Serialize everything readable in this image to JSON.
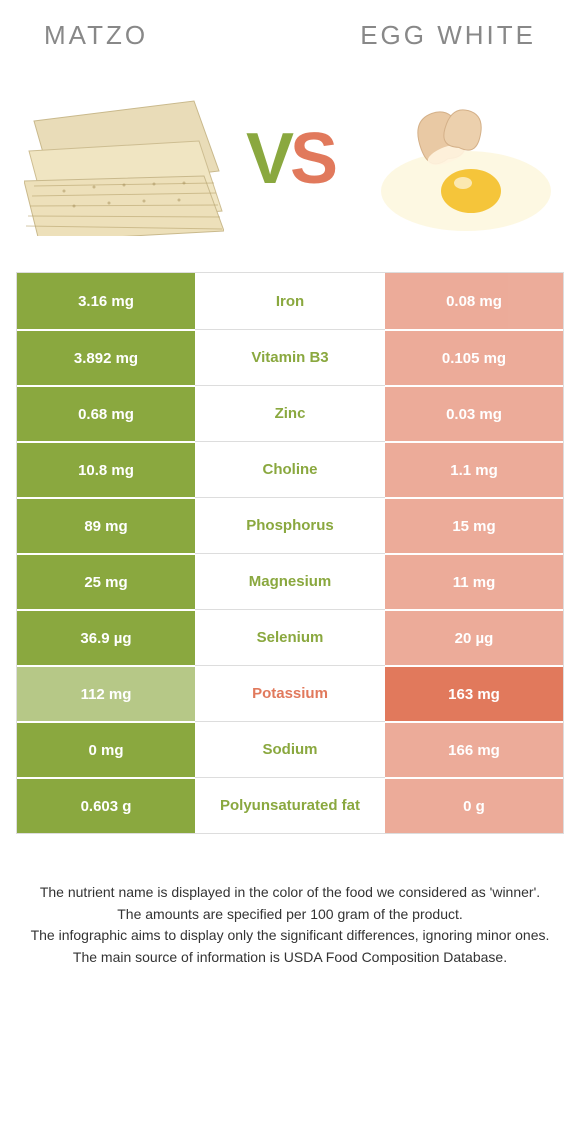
{
  "header": {
    "left_title": "Matzo",
    "right_title": "Egg white"
  },
  "colors": {
    "left": "#8aa83f",
    "right": "#e1795c",
    "row_border": "#dddddd",
    "text_footer": "#333333",
    "title_gray": "#888888"
  },
  "vs_label": {
    "v": "V",
    "s": "S"
  },
  "nutrients": [
    {
      "name": "Iron",
      "left": "3.16 mg",
      "right": "0.08 mg",
      "winner": "left"
    },
    {
      "name": "Vitamin B3",
      "left": "3.892 mg",
      "right": "0.105 mg",
      "winner": "left"
    },
    {
      "name": "Zinc",
      "left": "0.68 mg",
      "right": "0.03 mg",
      "winner": "left"
    },
    {
      "name": "Choline",
      "left": "10.8 mg",
      "right": "1.1 mg",
      "winner": "left"
    },
    {
      "name": "Phosphorus",
      "left": "89 mg",
      "right": "15 mg",
      "winner": "left"
    },
    {
      "name": "Magnesium",
      "left": "25 mg",
      "right": "11 mg",
      "winner": "left"
    },
    {
      "name": "Selenium",
      "left": "36.9 µg",
      "right": "20 µg",
      "winner": "left"
    },
    {
      "name": "Potassium",
      "left": "112 mg",
      "right": "163 mg",
      "winner": "right"
    },
    {
      "name": "Sodium",
      "left": "0 mg",
      "right": "166 mg",
      "winner": "left"
    },
    {
      "name": "Polyunsaturated fat",
      "left": "0.603 g",
      "right": "0 g",
      "winner": "left"
    }
  ],
  "footer_lines": [
    "The nutrient name is displayed in the color of the food we considered as 'winner'.",
    "The amounts are specified per 100 gram of the product.",
    "The infographic aims to display only the significant differences, ignoring minor ones.",
    "The main source of information is USDA Food Composition Database."
  ]
}
